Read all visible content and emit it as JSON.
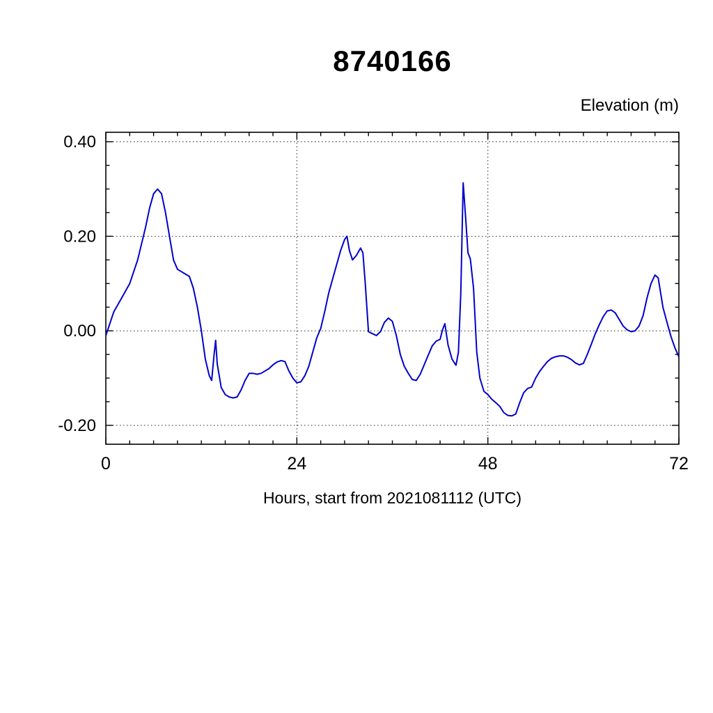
{
  "chart_data": {
    "type": "line",
    "title": "8740166",
    "right_axis_title": "Elevation (m)",
    "xlabel": "Hours, start from 2021081112 (UTC)",
    "xlim": [
      0,
      72
    ],
    "ylim": [
      -0.24,
      0.42
    ],
    "x_ticks": {
      "values": [
        0,
        24,
        48,
        72
      ],
      "labels": [
        "0",
        "24",
        "48",
        "72"
      ],
      "minor_step": 3
    },
    "y_ticks": {
      "values": [
        -0.2,
        0,
        0.2,
        0.4
      ],
      "labels": [
        "-0.20",
        "0.00",
        "0.20",
        "0.40"
      ],
      "minor_step": 0.05
    },
    "grid": {
      "x_values": [
        24,
        48
      ],
      "y_values": [
        -0.2,
        0,
        0.2,
        0.4
      ],
      "style": "dotted"
    },
    "line_color": "#0000cd",
    "series": [
      {
        "name": "elevation",
        "x": [
          0,
          1,
          2,
          3,
          4,
          5,
          5.5,
          6,
          6.5,
          7,
          7.5,
          8,
          8.5,
          9,
          9.5,
          10,
          10.5,
          11,
          11.5,
          12,
          12.5,
          13,
          13.3,
          13.6,
          13.8,
          14,
          14.5,
          15,
          15.5,
          16,
          16.5,
          17,
          17.5,
          18,
          18.5,
          19,
          19.5,
          20,
          20.5,
          21,
          21.5,
          22,
          22.5,
          23,
          23.5,
          24,
          24.5,
          25,
          25.5,
          26,
          26.5,
          27,
          27.5,
          28,
          28.5,
          29,
          29.5,
          30,
          30.3,
          30.6,
          31,
          31.5,
          32,
          32.3,
          32.6,
          33,
          33.5,
          34,
          34.5,
          35,
          35.5,
          36,
          36.5,
          37,
          37.5,
          38,
          38.5,
          39,
          39.5,
          40,
          40.5,
          41,
          41.5,
          42,
          42.3,
          42.6,
          43,
          43.5,
          44,
          44.3,
          44.6,
          44.9,
          45.2,
          45.5,
          45.8,
          46.2,
          46.6,
          47,
          47.5,
          48,
          48.5,
          49,
          49.5,
          50,
          50.5,
          51,
          51.5,
          52,
          52.5,
          53,
          53.5,
          54,
          54.5,
          55,
          55.5,
          56,
          56.5,
          57,
          57.5,
          58,
          58.5,
          59,
          59.5,
          60,
          60.5,
          61,
          61.5,
          62,
          62.5,
          63,
          63.5,
          64,
          64.5,
          65,
          65.5,
          66,
          66.5,
          67,
          67.5,
          68,
          68.5,
          69,
          69.4,
          70,
          70.5,
          71,
          71.5,
          72
        ],
        "y": [
          -0.01,
          0.04,
          0.07,
          0.1,
          0.15,
          0.22,
          0.26,
          0.29,
          0.3,
          0.29,
          0.25,
          0.2,
          0.15,
          0.13,
          0.125,
          0.12,
          0.115,
          0.09,
          0.05,
          0.0,
          -0.06,
          -0.095,
          -0.105,
          -0.05,
          -0.02,
          -0.07,
          -0.12,
          -0.135,
          -0.14,
          -0.142,
          -0.14,
          -0.125,
          -0.105,
          -0.09,
          -0.09,
          -0.092,
          -0.09,
          -0.085,
          -0.08,
          -0.072,
          -0.066,
          -0.063,
          -0.065,
          -0.085,
          -0.1,
          -0.11,
          -0.108,
          -0.095,
          -0.075,
          -0.045,
          -0.015,
          0.005,
          0.04,
          0.08,
          0.11,
          0.14,
          0.17,
          0.193,
          0.2,
          0.17,
          0.15,
          0.16,
          0.175,
          0.165,
          0.1,
          -0.002,
          -0.006,
          -0.01,
          -0.002,
          0.018,
          0.027,
          0.02,
          -0.01,
          -0.05,
          -0.075,
          -0.09,
          -0.103,
          -0.105,
          -0.092,
          -0.072,
          -0.052,
          -0.032,
          -0.022,
          -0.018,
          0.002,
          0.015,
          -0.03,
          -0.06,
          -0.073,
          -0.045,
          0.08,
          0.313,
          0.24,
          0.165,
          0.152,
          0.09,
          -0.045,
          -0.1,
          -0.128,
          -0.135,
          -0.145,
          -0.152,
          -0.16,
          -0.173,
          -0.179,
          -0.18,
          -0.176,
          -0.152,
          -0.131,
          -0.122,
          -0.119,
          -0.1,
          -0.086,
          -0.075,
          -0.065,
          -0.058,
          -0.055,
          -0.053,
          -0.053,
          -0.056,
          -0.061,
          -0.068,
          -0.072,
          -0.069,
          -0.05,
          -0.028,
          -0.006,
          0.013,
          0.03,
          0.042,
          0.044,
          0.038,
          0.024,
          0.01,
          0.002,
          -0.002,
          0.0,
          0.01,
          0.032,
          0.07,
          0.1,
          0.118,
          0.112,
          0.05,
          0.018,
          -0.012,
          -0.036,
          -0.055
        ]
      }
    ]
  }
}
